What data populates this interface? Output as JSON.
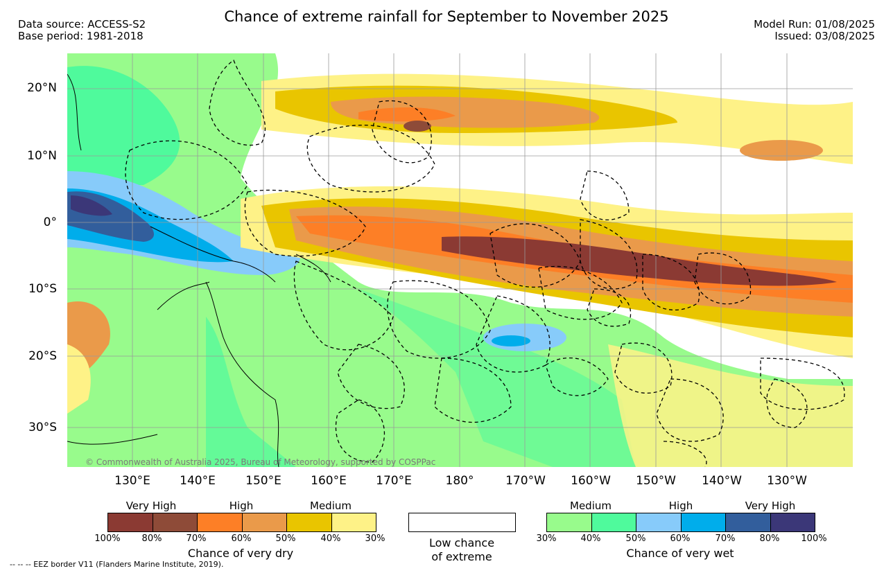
{
  "header": {
    "title": "Chance of extreme rainfall for September to November 2025",
    "data_source": "Data source: ACCESS-S2",
    "base_period": "Base period: 1981-2018",
    "model_run": "Model Run: 01/08/2025",
    "issued": "Issued: 03/08/2025"
  },
  "map": {
    "lat_labels": [
      "20°N",
      "10°N",
      "0°",
      "10°S",
      "20°S",
      "30°S"
    ],
    "lon_labels": [
      "130°E",
      "140°E",
      "150°E",
      "160°E",
      "170°E",
      "180°",
      "170°W",
      "160°W",
      "150°W",
      "140°W",
      "130°W"
    ],
    "credit": "© Commonwealth of Australia 2025, Bureau of Meteorology, supported by COSPPac"
  },
  "legend": {
    "dry": {
      "categories": [
        "Very High",
        "High",
        "Medium"
      ],
      "ticks": [
        "100%",
        "80%",
        "70%",
        "60%",
        "50%",
        "40%",
        "30%"
      ],
      "caption": "Chance of very dry",
      "colors": [
        "#8b3a33",
        "#8e4b38",
        "#fd7f26",
        "#ea9a4a",
        "#e9c500",
        "#fef287"
      ]
    },
    "low": {
      "caption_line1": "Low chance",
      "caption_line2": "of extreme"
    },
    "wet": {
      "categories": [
        "Medium",
        "High",
        "Very High"
      ],
      "ticks": [
        "30%",
        "40%",
        "50%",
        "60%",
        "70%",
        "80%",
        "100%"
      ],
      "caption": "Chance of very wet",
      "colors": [
        "#98fb8c",
        "#4ffa9c",
        "#87cbfa",
        "#00adeb",
        "#325e9c",
        "#3b3778"
      ]
    }
  },
  "footer": {
    "eez_note": "-- -- -- EEZ border V11 (Flanders Marine Institute, 2019)."
  }
}
